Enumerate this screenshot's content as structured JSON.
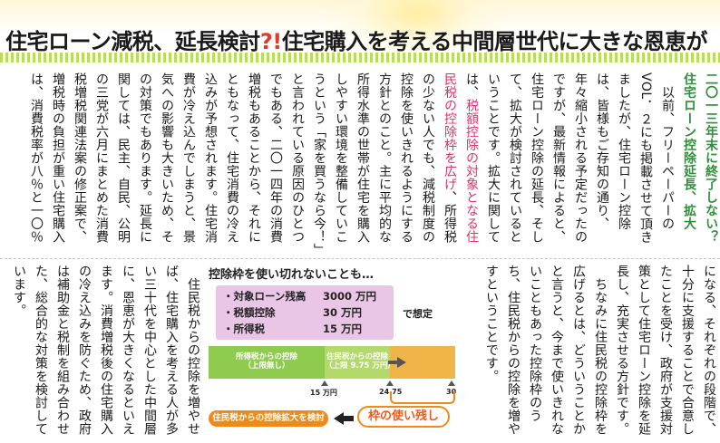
{
  "headline": {
    "before": "住宅ローン減税、延長検討",
    "mark": "?!",
    "after": "住宅購入を考える中間層世代に大きな恩恵が"
  },
  "article": {
    "lead": "二〇一三年末に終了しない？住宅ローン控除延長、拡大",
    "p1": "以前、フリーペーパーのVOL．２にも掲載させて頂きましたが、住宅ローン控除は、皆様もご存知の通り、年々縮小される予定だったのですが、最新情報によると、住宅ローン控除の延長、そして、拡大が検討されているということです。拡大に関しては、",
    "p1_hl": "税額控除の対象となる住民税の控除枠を広げ",
    "p1_end": "、所得税の少ない人でも、減税制度の控除を使いきれるようにする方針とのこと。主に平均的な所得水準の世帯が住宅を購入しやすい環境を整備していこうという「家を買うなら今！」と言われている原因のひとつでもある、二〇一四年の消費増税もあることから、それにともなって、住宅消費の冷え込みが予想されます。住宅消費が冷え込んでしまうと、景気への影響も大きいため、その対策でもあります。延長に関しては、民主、自民、公明の三党が六月にまとめた消費税増税関連法案の修正案で、増税時の負担が重い住宅購入は、消費税率が八％と一〇％",
    "p2": "になる、それぞれの段階で、十分に支援することで合意したことを受け、政府が支援対策として住宅ローン控除を延長し、充実させる方針です。",
    "p3": "ちなみに住民税の控除枠を広げるとは、どういうことかと言うと、今まで使いきれないこともあった控除枠のうち、住民税からの控除を増やすということです。",
    "p4": "住民税からの控除を増やせば、住宅購入を考える人が多い三十代を中心とした中間層に、恩恵が大きくなるといえます。消費増税後の住宅購入の冷え込みを防ぐため、政府は補助金と税制を組み合わせた、総合的な対策を検討しています。"
  },
  "figure": {
    "title": "控除枠を使い切れないことも…",
    "conditions": [
      {
        "label": "・対象ローン残高",
        "value": "3000 万円"
      },
      {
        "label": "・税額控除",
        "value": "30 万円"
      },
      {
        "label": "・所得税",
        "value": "15 万円"
      }
    ],
    "assume": "で想定",
    "bar_left_label": "所得税からの控除",
    "bar_left_sub": "（上限無し）",
    "bar_mid_label": "住民税からの控除",
    "bar_mid_sub": "（上限 9.75 万円）",
    "ticks": [
      "15 万円",
      "24.75",
      "30"
    ],
    "pill": "住民税からの控除拡大を検討",
    "remain": "枠の使い残し",
    "colors": {
      "green": "#8fcb4e",
      "light_green": "#b2d96a",
      "orange": "#f0b548",
      "accent": "#ef8a18",
      "pink_box": "#e9c6e6"
    }
  }
}
